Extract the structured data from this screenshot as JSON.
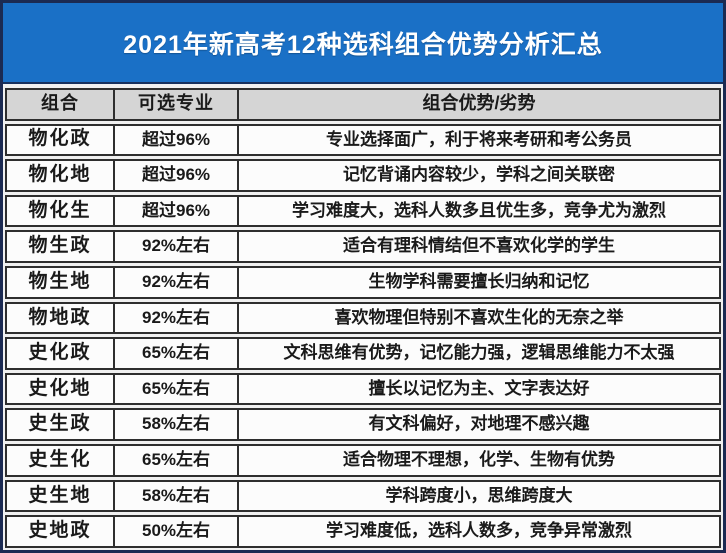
{
  "title": "2021年新高考12种选科组合优势分析汇总",
  "colors": {
    "outer_border": "#1b2a52",
    "title_bg": "#1a70c6",
    "title_text": "#ffffff",
    "header_bg": "#d5d5d5",
    "row_bg": "#fcfcfc",
    "cell_border": "#2e2e2e",
    "text": "#1a1a1a"
  },
  "table": {
    "headers": [
      "组合",
      "可选专业",
      "组合优势/劣势"
    ],
    "rows": [
      {
        "combo": "物化政",
        "percent": "超过96%",
        "note": "专业选择面广，利于将来考研和考公务员"
      },
      {
        "combo": "物化地",
        "percent": "超过96%",
        "note": "记忆背诵内容较少，学科之间关联密"
      },
      {
        "combo": "物化生",
        "percent": "超过96%",
        "note": "学习难度大，选科人数多且优生多，竞争尤为激烈"
      },
      {
        "combo": "物生政",
        "percent": "92%左右",
        "note": "适合有理科情结但不喜欢化学的学生"
      },
      {
        "combo": "物生地",
        "percent": "92%左右",
        "note": "生物学科需要擅长归纳和记忆"
      },
      {
        "combo": "物地政",
        "percent": "92%左右",
        "note": "喜欢物理但特别不喜欢生化的无奈之举"
      },
      {
        "combo": "史化政",
        "percent": "65%左右",
        "note": "文科思维有优势，记忆能力强，逻辑思维能力不太强"
      },
      {
        "combo": "史化地",
        "percent": "65%左右",
        "note": "擅长以记忆为主、文字表达好"
      },
      {
        "combo": "史生政",
        "percent": "58%左右",
        "note": "有文科偏好，对地理不感兴趣"
      },
      {
        "combo": "史生化",
        "percent": "65%左右",
        "note": "适合物理不理想，化学、生物有优势"
      },
      {
        "combo": "史生地",
        "percent": "58%左右",
        "note": "学科跨度小，思维跨度大"
      },
      {
        "combo": "史地政",
        "percent": "50%左右",
        "note": "学习难度低，选科人数多，竞争异常激烈"
      }
    ]
  }
}
